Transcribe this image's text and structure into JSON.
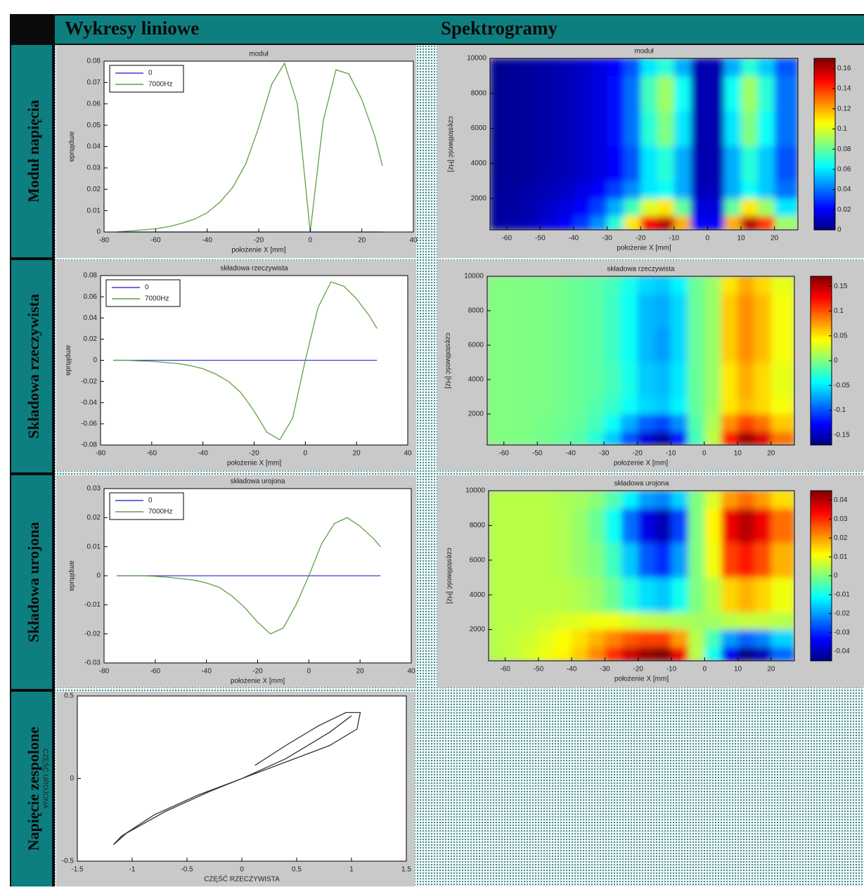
{
  "columns": [
    "Wykresy liniowe",
    "Spektrogramy"
  ],
  "rows": [
    "Moduł napięcia",
    "Składowa rzeczywista",
    "Składowa urojona",
    "Napięcie zespolone"
  ],
  "chart_data": [
    {
      "type": "line",
      "title": "moduł",
      "xlabel": "położenie X [mm]",
      "ylabel": "amplituda",
      "legend": "upper left",
      "x": [
        -75,
        -70,
        -65,
        -60,
        -55,
        -50,
        -45,
        -40,
        -35,
        -30,
        -25,
        -20,
        -15,
        -10,
        -5,
        0,
        5,
        10,
        15,
        20,
        25,
        28
      ],
      "series": [
        {
          "name": "0",
          "color": "#3c3cd8",
          "values": [
            0,
            0,
            0,
            0,
            0,
            0,
            0,
            0,
            0,
            0,
            0,
            0,
            0,
            0,
            0,
            0,
            0,
            0,
            0,
            0,
            0,
            0
          ]
        },
        {
          "name": "7000Hz",
          "color": "#5fa044",
          "values": [
            0,
            0.0005,
            0.001,
            0.0015,
            0.0025,
            0.004,
            0.006,
            0.009,
            0.014,
            0.021,
            0.032,
            0.049,
            0.069,
            0.079,
            0.06,
            0,
            0.052,
            0.076,
            0.074,
            0.062,
            0.045,
            0.031
          ]
        }
      ],
      "xlim": [
        -80,
        40
      ],
      "xticks": [
        -80,
        -60,
        -40,
        -20,
        0,
        20,
        40
      ],
      "ylim": [
        0,
        0.08
      ],
      "yticks": [
        0,
        0.01,
        0.02,
        0.03,
        0.04,
        0.05,
        0.06,
        0.07,
        0.08
      ]
    },
    {
      "type": "line",
      "title": "składowa rzeczywista",
      "xlabel": "położenie X [mm]",
      "ylabel": "amplituda",
      "legend": "upper left",
      "x": [
        -75,
        -70,
        -65,
        -60,
        -55,
        -50,
        -45,
        -40,
        -35,
        -30,
        -25,
        -20,
        -15,
        -10,
        -5,
        0,
        5,
        10,
        15,
        20,
        25,
        28
      ],
      "series": [
        {
          "name": "0",
          "color": "#3c3cd8",
          "values": [
            0,
            0,
            0,
            0,
            0,
            0,
            0,
            0,
            0,
            0,
            0,
            0,
            0,
            0,
            0,
            0,
            0,
            0,
            0,
            0,
            0,
            0
          ]
        },
        {
          "name": "7000Hz",
          "color": "#5fa044",
          "values": [
            0,
            0,
            -0.0005,
            -0.001,
            -0.002,
            -0.003,
            -0.005,
            -0.008,
            -0.013,
            -0.02,
            -0.031,
            -0.048,
            -0.068,
            -0.075,
            -0.055,
            0,
            0.05,
            0.074,
            0.07,
            0.058,
            0.042,
            0.03
          ]
        }
      ],
      "xlim": [
        -80,
        40
      ],
      "xticks": [
        -80,
        -60,
        -40,
        -20,
        0,
        20,
        40
      ],
      "ylim": [
        -0.08,
        0.08
      ],
      "yticks": [
        -0.08,
        -0.06,
        -0.04,
        -0.02,
        0,
        0.02,
        0.04,
        0.06,
        0.08
      ]
    },
    {
      "type": "line",
      "title": "składowa urojona",
      "xlabel": "położenie X [mm]",
      "ylabel": "amplituda",
      "legend": "upper left",
      "x": [
        -75,
        -70,
        -65,
        -60,
        -55,
        -50,
        -45,
        -40,
        -35,
        -30,
        -25,
        -20,
        -15,
        -10,
        -5,
        0,
        5,
        10,
        15,
        20,
        25,
        28
      ],
      "series": [
        {
          "name": "0",
          "color": "#3c3cd8",
          "values": [
            0,
            0,
            0,
            0,
            0,
            0,
            0,
            0,
            0,
            0,
            0,
            0,
            0,
            0,
            0,
            0,
            0,
            0,
            0,
            0,
            0,
            0
          ]
        },
        {
          "name": "7000Hz",
          "color": "#5fa044",
          "values": [
            0,
            0,
            0,
            -0.0002,
            -0.0005,
            -0.001,
            -0.0015,
            -0.0025,
            -0.004,
            -0.007,
            -0.011,
            -0.016,
            -0.02,
            -0.018,
            -0.01,
            0,
            0.011,
            0.018,
            0.02,
            0.017,
            0.013,
            0.01
          ]
        }
      ],
      "xlim": [
        -80,
        40
      ],
      "xticks": [
        -80,
        -60,
        -40,
        -20,
        0,
        20,
        40
      ],
      "ylim": [
        -0.03,
        0.03
      ],
      "yticks": [
        -0.03,
        -0.02,
        -0.01,
        0,
        0.01,
        0.02,
        0.03
      ]
    },
    {
      "type": "line",
      "xlabel": "CZĘŚĆ RZECZYWISTA",
      "ylabel": "CZĘŚĆ UROJONA",
      "color": "#333333",
      "x": [
        0.12,
        0.4,
        0.7,
        0.95,
        1.08,
        1.05,
        0.8,
        0.4,
        0,
        -0.4,
        -0.8,
        -1.1,
        -1.17,
        -1.05,
        -0.7,
        -0.3,
        0,
        0.4,
        0.8,
        1.0
      ],
      "values": [
        0.08,
        0.2,
        0.32,
        0.4,
        0.4,
        0.3,
        0.2,
        0.1,
        0,
        -0.1,
        -0.22,
        -0.35,
        -0.4,
        -0.33,
        -0.2,
        -0.08,
        0,
        0.12,
        0.28,
        0.38
      ],
      "xlim": [
        -1.5,
        1.5
      ],
      "xticks": [
        -1.5,
        -1,
        -0.5,
        0,
        0.5,
        1,
        1.5
      ],
      "ylim": [
        -0.5,
        0.5
      ],
      "yticks": [
        -0.5,
        0,
        0.5
      ]
    },
    {
      "type": "heatmap",
      "title": "moduł",
      "xlabel": "położenie X [mm]",
      "ylabel": "częstotliwość [Hz]",
      "x_bins": [
        -65,
        -60,
        -55,
        -50,
        -45,
        -40,
        -35,
        -30,
        -25,
        -20,
        -15,
        -10,
        -5,
        0,
        5,
        10,
        15,
        20,
        27
      ],
      "y_bins": [
        200,
        1000,
        2000,
        3000,
        5000,
        7000,
        9000,
        10000
      ],
      "values": [
        [
          0.005,
          0.007,
          0.01,
          0.015,
          0.02,
          0.03,
          0.045,
          0.07,
          0.11,
          0.15,
          0.16,
          0.12,
          0.02,
          0.02,
          0.12,
          0.16,
          0.14,
          0.09
        ],
        [
          0.005,
          0.006,
          0.008,
          0.012,
          0.016,
          0.022,
          0.032,
          0.05,
          0.075,
          0.1,
          0.11,
          0.08,
          0.015,
          0.015,
          0.08,
          0.11,
          0.09,
          0.06
        ],
        [
          0.004,
          0.005,
          0.007,
          0.009,
          0.012,
          0.016,
          0.022,
          0.032,
          0.045,
          0.06,
          0.065,
          0.05,
          0.01,
          0.01,
          0.05,
          0.065,
          0.055,
          0.04
        ],
        [
          0.003,
          0.004,
          0.005,
          0.007,
          0.009,
          0.012,
          0.016,
          0.022,
          0.035,
          0.06,
          0.07,
          0.05,
          0.008,
          0.008,
          0.05,
          0.07,
          0.055,
          0.035
        ],
        [
          0.003,
          0.004,
          0.005,
          0.007,
          0.009,
          0.012,
          0.016,
          0.024,
          0.04,
          0.07,
          0.085,
          0.06,
          0.008,
          0.008,
          0.06,
          0.085,
          0.065,
          0.04
        ],
        [
          0.003,
          0.004,
          0.005,
          0.007,
          0.009,
          0.012,
          0.016,
          0.024,
          0.04,
          0.075,
          0.09,
          0.065,
          0.008,
          0.008,
          0.065,
          0.09,
          0.07,
          0.04
        ],
        [
          0.003,
          0.004,
          0.005,
          0.007,
          0.009,
          0.012,
          0.016,
          0.022,
          0.035,
          0.06,
          0.07,
          0.05,
          0.008,
          0.008,
          0.05,
          0.07,
          0.055,
          0.035
        ]
      ],
      "xlim": [
        -65,
        27
      ],
      "xticks": [
        -60,
        -50,
        -40,
        -30,
        -20,
        -10,
        0,
        10,
        20
      ],
      "ylim": [
        200,
        10000
      ],
      "yticks": [
        2000,
        4000,
        6000,
        8000,
        10000
      ],
      "clim": [
        0,
        0.17
      ],
      "cticks": [
        0,
        0.02,
        0.04,
        0.06,
        0.08,
        0.1,
        0.12,
        0.14,
        0.16
      ]
    },
    {
      "type": "heatmap",
      "title": "składowa rzeczywista",
      "xlabel": "położenie X [mm]",
      "ylabel": "częstotliwość [Hz]",
      "x_bins": [
        -65,
        -60,
        -55,
        -50,
        -45,
        -40,
        -35,
        -30,
        -25,
        -20,
        -15,
        -10,
        -5,
        0,
        5,
        10,
        15,
        20,
        27
      ],
      "y_bins": [
        200,
        1000,
        2000,
        3000,
        5000,
        7000,
        9000,
        10000
      ],
      "values": [
        [
          0,
          0,
          -0.002,
          -0.004,
          -0.008,
          -0.015,
          -0.03,
          -0.06,
          -0.1,
          -0.14,
          -0.16,
          -0.12,
          -0.02,
          0.02,
          0.12,
          0.16,
          0.14,
          0.09
        ],
        [
          0,
          0,
          -0.001,
          -0.003,
          -0.006,
          -0.01,
          -0.02,
          -0.04,
          -0.07,
          -0.095,
          -0.105,
          -0.08,
          -0.015,
          0.015,
          0.08,
          0.105,
          0.09,
          0.06
        ],
        [
          0,
          0,
          -0.001,
          -0.002,
          -0.004,
          -0.008,
          -0.015,
          -0.025,
          -0.04,
          -0.055,
          -0.06,
          -0.045,
          -0.01,
          0.01,
          0.05,
          0.065,
          0.055,
          0.04
        ],
        [
          0,
          0,
          -0.001,
          -0.002,
          -0.004,
          -0.008,
          -0.012,
          -0.02,
          -0.035,
          -0.06,
          -0.065,
          -0.05,
          -0.008,
          0.008,
          0.05,
          0.07,
          0.055,
          0.035
        ],
        [
          0,
          0,
          -0.001,
          -0.002,
          -0.004,
          -0.008,
          -0.012,
          -0.022,
          -0.04,
          -0.065,
          -0.075,
          -0.055,
          -0.008,
          0.008,
          0.06,
          0.08,
          0.065,
          0.04
        ],
        [
          0,
          0,
          -0.001,
          -0.002,
          -0.004,
          -0.008,
          -0.012,
          -0.022,
          -0.04,
          -0.065,
          -0.07,
          -0.055,
          -0.008,
          0.008,
          0.06,
          0.08,
          0.065,
          0.04
        ],
        [
          0,
          0,
          -0.001,
          -0.002,
          -0.004,
          -0.008,
          -0.012,
          -0.02,
          -0.035,
          -0.055,
          -0.06,
          -0.045,
          -0.008,
          0.008,
          0.05,
          0.07,
          0.055,
          0.035
        ]
      ],
      "xlim": [
        -65,
        27
      ],
      "xticks": [
        -60,
        -50,
        -40,
        -30,
        -20,
        -10,
        0,
        10,
        20
      ],
      "ylim": [
        200,
        10000
      ],
      "yticks": [
        2000,
        4000,
        6000,
        8000,
        10000
      ],
      "clim": [
        -0.17,
        0.17
      ],
      "cticks": [
        -0.15,
        -0.1,
        -0.05,
        0,
        0.05,
        0.1,
        0.15
      ]
    },
    {
      "type": "heatmap",
      "title": "składowa urojona",
      "xlabel": "położenie X [mm]",
      "ylabel": "częstotliwość [Hz]",
      "x_bins": [
        -65,
        -60,
        -55,
        -50,
        -45,
        -40,
        -35,
        -30,
        -25,
        -20,
        -15,
        -10,
        -5,
        0,
        5,
        10,
        15,
        20,
        27
      ],
      "y_bins": [
        200,
        1000,
        2000,
        3000,
        5000,
        7000,
        9000,
        10000
      ],
      "values": [
        [
          0.005,
          0.006,
          0.008,
          0.01,
          0.012,
          0.016,
          0.022,
          0.03,
          0.038,
          0.043,
          0.045,
          0.035,
          0.005,
          -0.01,
          -0.035,
          -0.045,
          -0.04,
          -0.025
        ],
        [
          0.005,
          0.006,
          0.007,
          0.009,
          0.011,
          0.014,
          0.018,
          0.022,
          0.026,
          0.028,
          0.028,
          0.02,
          0.005,
          -0.005,
          -0.02,
          -0.025,
          -0.022,
          -0.015
        ],
        [
          0.005,
          0.005,
          0.006,
          0.007,
          0.008,
          0.009,
          0.01,
          0.01,
          0.008,
          0.006,
          0.005,
          0.004,
          0.003,
          0.003,
          0.005,
          0.006,
          0.006,
          0.005
        ],
        [
          0.005,
          0.005,
          0.005,
          0.005,
          0.005,
          0.004,
          0.002,
          -0.002,
          -0.008,
          -0.014,
          -0.016,
          -0.01,
          0,
          0.005,
          0.015,
          0.018,
          0.015,
          0.01
        ],
        [
          0.005,
          0.005,
          0.005,
          0.005,
          0.004,
          0.002,
          0,
          -0.006,
          -0.016,
          -0.026,
          -0.03,
          -0.02,
          0,
          0.01,
          0.028,
          0.032,
          0.027,
          0.018
        ],
        [
          0.005,
          0.005,
          0.005,
          0.005,
          0.004,
          0.002,
          -0.002,
          -0.01,
          -0.024,
          -0.036,
          -0.04,
          -0.028,
          0,
          0.012,
          0.035,
          0.04,
          0.035,
          0.024
        ],
        [
          0.005,
          0.005,
          0.005,
          0.005,
          0.004,
          0.003,
          0.001,
          -0.004,
          -0.012,
          -0.02,
          -0.022,
          -0.015,
          0,
          0.008,
          0.02,
          0.024,
          0.02,
          0.014
        ]
      ],
      "xlim": [
        -65,
        27
      ],
      "xticks": [
        -60,
        -50,
        -40,
        -30,
        -20,
        -10,
        0,
        10,
        20
      ],
      "ylim": [
        200,
        10000
      ],
      "yticks": [
        2000,
        4000,
        6000,
        8000,
        10000
      ],
      "clim": [
        -0.045,
        0.045
      ],
      "cticks": [
        -0.04,
        -0.03,
        -0.02,
        -0.01,
        0,
        0.01,
        0.02,
        0.03,
        0.04
      ]
    }
  ]
}
